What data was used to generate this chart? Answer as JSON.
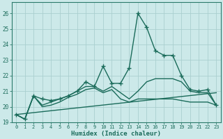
{
  "xlabel": "Humidex (Indice chaleur)",
  "bg_color": "#cce9e9",
  "grid_color": "#aacfcf",
  "line_color": "#1a6b5a",
  "spine_color": "#2a7a6a",
  "xlim": [
    -0.5,
    23.5
  ],
  "ylim": [
    19.0,
    26.7
  ],
  "yticks": [
    19,
    20,
    21,
    22,
    23,
    24,
    25,
    26
  ],
  "xticks": [
    0,
    1,
    2,
    3,
    4,
    5,
    6,
    7,
    8,
    9,
    10,
    11,
    12,
    13,
    14,
    15,
    16,
    17,
    18,
    19,
    20,
    21,
    22,
    23
  ],
  "series": [
    {
      "x": [
        0,
        1,
        2,
        3,
        4,
        5,
        6,
        7,
        8,
        9,
        10,
        11,
        12,
        13,
        14,
        15,
        16,
        17,
        18,
        19,
        20,
        21,
        22,
        23
      ],
      "y": [
        19.5,
        19.2,
        20.7,
        20.5,
        20.4,
        20.5,
        20.7,
        21.0,
        21.6,
        21.3,
        22.6,
        21.5,
        21.5,
        22.5,
        26.0,
        25.1,
        23.6,
        23.3,
        23.3,
        22.0,
        21.1,
        21.0,
        21.1,
        20.1
      ],
      "markers": true,
      "lw": 1.0
    },
    {
      "x": [
        0,
        1,
        2,
        3,
        4,
        5,
        6,
        7,
        8,
        9,
        10,
        11,
        12,
        13,
        14,
        15,
        16,
        17,
        18,
        19,
        20,
        21,
        22,
        23
      ],
      "y": [
        19.5,
        19.2,
        20.7,
        20.1,
        20.3,
        20.5,
        20.7,
        21.0,
        21.3,
        21.3,
        21.0,
        21.3,
        20.9,
        20.5,
        21.0,
        21.6,
        21.8,
        21.8,
        21.8,
        21.6,
        21.0,
        20.9,
        20.9,
        20.1
      ],
      "markers": false,
      "lw": 1.0
    },
    {
      "x": [
        0,
        1,
        2,
        3,
        4,
        5,
        6,
        7,
        8,
        9,
        10,
        11,
        12,
        13,
        14,
        15,
        16,
        17,
        18,
        19,
        20,
        21,
        22,
        23
      ],
      "y": [
        19.5,
        19.2,
        20.7,
        20.0,
        20.1,
        20.3,
        20.6,
        20.8,
        21.1,
        21.2,
        20.9,
        21.1,
        20.5,
        20.3,
        20.5,
        20.5,
        20.5,
        20.5,
        20.5,
        20.4,
        20.3,
        20.3,
        20.3,
        20.1
      ],
      "markers": false,
      "lw": 1.0
    },
    {
      "x": [
        0,
        23
      ],
      "y": [
        19.5,
        20.9
      ],
      "markers": false,
      "lw": 1.0
    }
  ]
}
